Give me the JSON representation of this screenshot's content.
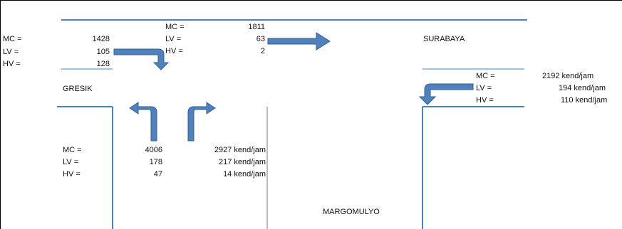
{
  "colors": {
    "road_line": "#4f81bd",
    "arrow_fill": "#4f81bd",
    "arrow_stroke": "#385d8a",
    "frame": "#000000",
    "text": "#111111"
  },
  "labels": {
    "gresik": "GRESIK",
    "surabaya": "SURABAYA",
    "margomulyo": "MARGOMULYO"
  },
  "top_flow": {
    "mc_label": "MC =",
    "mc_value": "1811",
    "lv_label": "LV =",
    "lv_value": "63",
    "hv_label": "HV =",
    "hv_value": "2"
  },
  "gresik_flow": {
    "mc_label": "MC =",
    "mc_value": "1428",
    "lv_label": "LV =",
    "lv_value": "105",
    "hv_label": "HV =",
    "hv_value": "128"
  },
  "surabaya_flow": {
    "mc_label": "MC =",
    "mc_value": "2192 kend/jam",
    "lv_label": "LV =",
    "lv_value": "194 kend/jam",
    "hv_label": "HV =",
    "hv_value": "110 kend/jam"
  },
  "south_flow": {
    "mc_label": "MC =",
    "mc_left": "4006",
    "mc_right": "2927 kend/jam",
    "lv_label": "LV =",
    "lv_left": "178",
    "lv_right": "217 kend/jam",
    "hv_label": "HV =",
    "hv_left": "47",
    "hv_right": "14 kend/jam"
  },
  "icons": {
    "arrow_1": "arrow-right-turn-down-icon",
    "arrow_2": "arrow-straight-right-icon",
    "arrow_3": "arrow-up-turn-left-icon",
    "arrow_4": "arrow-up-turn-right-icon",
    "arrow_5": "arrow-left-turn-down-icon"
  }
}
